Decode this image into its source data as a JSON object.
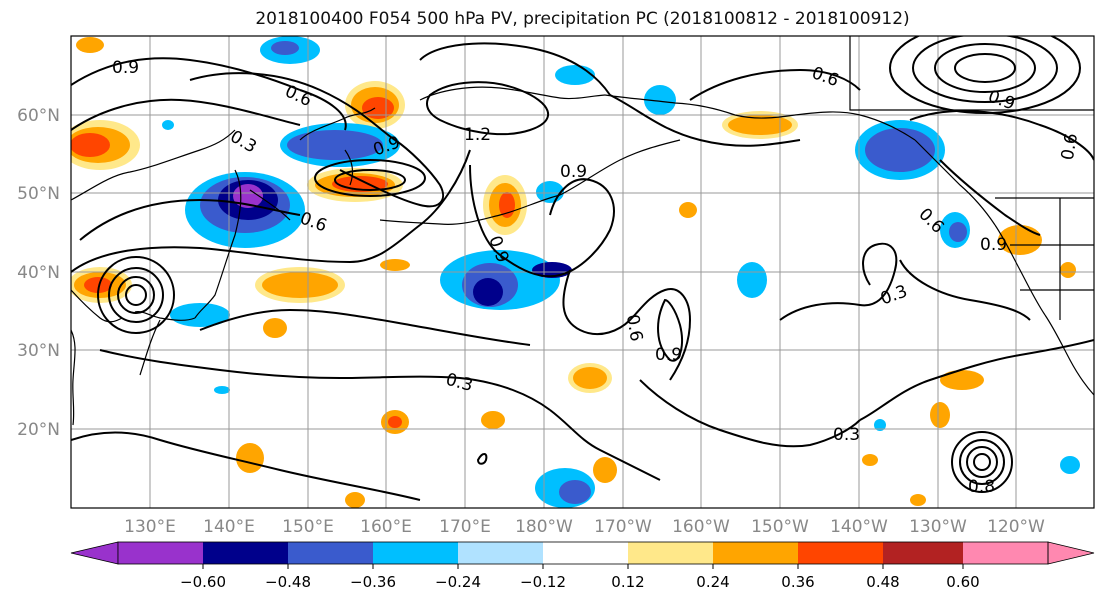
{
  "title": "2018100400 F054 500 hPa PV, precipitation PC (2018100812 - 2018100912)",
  "lat_labels": [
    "60°N",
    "50°N",
    "40°N",
    "30°N",
    "20°N"
  ],
  "lon_labels": [
    "130°E",
    "140°E",
    "150°E",
    "160°E",
    "170°E",
    "180°W",
    "170°W",
    "160°W",
    "150°W",
    "140°W",
    "130°W",
    "120°W"
  ],
  "contour_labels": [
    "0.9",
    "0.6",
    "0.3",
    "0.9",
    "0.6",
    "1.2",
    "0.9",
    "0.6",
    "0.9",
    "0.6",
    "0.9",
    "0.3",
    "0.6",
    "0.9",
    "0.3",
    "0.3",
    "0.8",
    "0.9",
    "0.6"
  ],
  "colorbar": {
    "ticks": [
      "−0.60",
      "−0.48",
      "−0.36",
      "−0.24",
      "−0.12",
      "0.12",
      "0.24",
      "0.36",
      "0.48",
      "0.60"
    ],
    "colors": [
      "#9932cc",
      "#00008b",
      "#3a5bcd",
      "#00bfff",
      "#b0e2ff",
      "#ffffff",
      "#ffe88a",
      "#ffa500",
      "#ff4500",
      "#b22222",
      "#ff88b0"
    ]
  },
  "colors": {
    "grid": "#999999",
    "contour": "#000000",
    "coast": "#000000",
    "axis_label": "#888888"
  }
}
